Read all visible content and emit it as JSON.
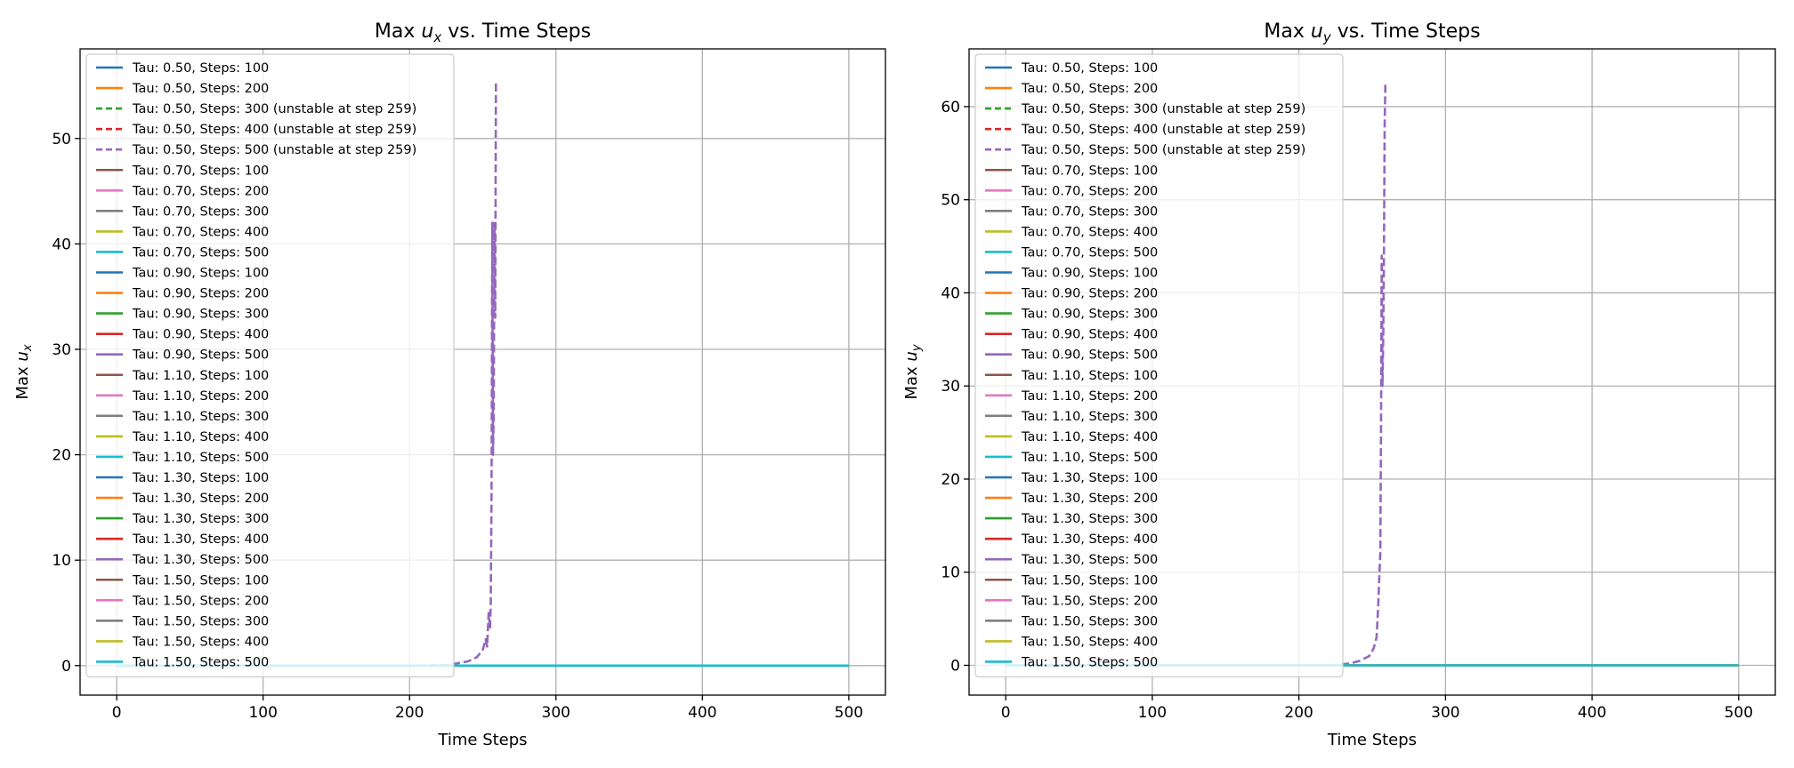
{
  "colors": {
    "blue": "#1f77b4",
    "orange": "#ff7f0e",
    "green": "#2ca02c",
    "red": "#d62728",
    "purple": "#9467bd",
    "brown": "#8c564b",
    "pink": "#e377c2",
    "gray": "#7f7f7f",
    "olive": "#bcbd22",
    "cyan": "#17becf",
    "grid": "#b0b0b0",
    "frame": "#000000"
  },
  "chart_data": [
    {
      "type": "line",
      "title_prefix": "Max ",
      "title_var": "u",
      "title_sub": "x",
      "title_suffix": " vs. Time Steps",
      "xlabel": "Time Steps",
      "ylabel_prefix": "Max ",
      "ylabel_var": "u",
      "ylabel_sub": "x",
      "xlim": [
        -25,
        525
      ],
      "ylim": [
        -2.8,
        58.5
      ],
      "xticks": [
        0,
        100,
        200,
        300,
        400,
        500
      ],
      "xtick_labels": [
        "0",
        "100",
        "200",
        "300",
        "400",
        "500"
      ],
      "yticks": [
        0,
        10,
        20,
        30,
        40,
        50
      ],
      "ytick_labels": [
        "0",
        "10",
        "20",
        "30",
        "40",
        "50"
      ],
      "grid": true,
      "legend_position": "upper-left",
      "series": [
        {
          "name": "Tau: 0.50, Steps: 100",
          "color": "blue",
          "dash": false
        },
        {
          "name": "Tau: 0.50, Steps: 200",
          "color": "orange",
          "dash": false
        },
        {
          "name": "Tau: 0.50, Steps: 300 (unstable at step 259)",
          "color": "green",
          "dash": true
        },
        {
          "name": "Tau: 0.50, Steps: 400 (unstable at step 259)",
          "color": "red",
          "dash": true
        },
        {
          "name": "Tau: 0.50, Steps: 500 (unstable at step 259)",
          "color": "purple",
          "dash": true
        },
        {
          "name": "Tau: 0.70, Steps: 100",
          "color": "brown",
          "dash": false
        },
        {
          "name": "Tau: 0.70, Steps: 200",
          "color": "pink",
          "dash": false
        },
        {
          "name": "Tau: 0.70, Steps: 300",
          "color": "gray",
          "dash": false
        },
        {
          "name": "Tau: 0.70, Steps: 400",
          "color": "olive",
          "dash": false
        },
        {
          "name": "Tau: 0.70, Steps: 500",
          "color": "cyan",
          "dash": false
        },
        {
          "name": "Tau: 0.90, Steps: 100",
          "color": "blue",
          "dash": false
        },
        {
          "name": "Tau: 0.90, Steps: 200",
          "color": "orange",
          "dash": false
        },
        {
          "name": "Tau: 0.90, Steps: 300",
          "color": "green",
          "dash": false
        },
        {
          "name": "Tau: 0.90, Steps: 400",
          "color": "red",
          "dash": false
        },
        {
          "name": "Tau: 0.90, Steps: 500",
          "color": "purple",
          "dash": false
        },
        {
          "name": "Tau: 1.10, Steps: 100",
          "color": "brown",
          "dash": false
        },
        {
          "name": "Tau: 1.10, Steps: 200",
          "color": "pink",
          "dash": false
        },
        {
          "name": "Tau: 1.10, Steps: 300",
          "color": "gray",
          "dash": false
        },
        {
          "name": "Tau: 1.10, Steps: 400",
          "color": "olive",
          "dash": false
        },
        {
          "name": "Tau: 1.10, Steps: 500",
          "color": "cyan",
          "dash": false
        },
        {
          "name": "Tau: 1.30, Steps: 100",
          "color": "blue",
          "dash": false
        },
        {
          "name": "Tau: 1.30, Steps: 200",
          "color": "orange",
          "dash": false
        },
        {
          "name": "Tau: 1.30, Steps: 300",
          "color": "green",
          "dash": false
        },
        {
          "name": "Tau: 1.30, Steps: 400",
          "color": "red",
          "dash": false
        },
        {
          "name": "Tau: 1.30, Steps: 500",
          "color": "purple",
          "dash": false
        },
        {
          "name": "Tau: 1.50, Steps: 100",
          "color": "brown",
          "dash": false
        },
        {
          "name": "Tau: 1.50, Steps: 200",
          "color": "pink",
          "dash": false
        },
        {
          "name": "Tau: 1.50, Steps: 300",
          "color": "gray",
          "dash": false
        },
        {
          "name": "Tau: 1.50, Steps: 400",
          "color": "olive",
          "dash": false
        },
        {
          "name": "Tau: 1.50, Steps: 500",
          "color": "cyan",
          "dash": false
        }
      ],
      "stable_traces": [
        {
          "color": "blue",
          "x": [
            0,
            500
          ],
          "y": [
            0,
            0
          ]
        },
        {
          "color": "orange",
          "x": [
            0,
            500
          ],
          "y": [
            0,
            0
          ]
        },
        {
          "color": "cyan",
          "x": [
            0,
            500
          ],
          "y": [
            0,
            0
          ]
        }
      ],
      "unstable_trace": {
        "color": "purple",
        "x": [
          0,
          100,
          200,
          225,
          232,
          240,
          246,
          250,
          252,
          253,
          254,
          255,
          255.5,
          256,
          256.5,
          257,
          257.5,
          258,
          258.5,
          259
        ],
        "y": [
          0,
          0,
          0,
          0.05,
          0.2,
          0.4,
          0.8,
          1.5,
          2.5,
          1.8,
          5.0,
          3.5,
          6.0,
          17.0,
          42.0,
          20.0,
          24.0,
          42.0,
          33.0,
          55.5
        ]
      }
    },
    {
      "type": "line",
      "title_prefix": "Max ",
      "title_var": "u",
      "title_sub": "y",
      "title_suffix": " vs. Time Steps",
      "xlabel": "Time Steps",
      "ylabel_prefix": "Max ",
      "ylabel_var": "u",
      "ylabel_sub": "y",
      "xlim": [
        -25,
        525
      ],
      "ylim": [
        -3.2,
        66.2
      ],
      "xticks": [
        0,
        100,
        200,
        300,
        400,
        500
      ],
      "xtick_labels": [
        "0",
        "100",
        "200",
        "300",
        "400",
        "500"
      ],
      "yticks": [
        0,
        10,
        20,
        30,
        40,
        50,
        60
      ],
      "ytick_labels": [
        "0",
        "10",
        "20",
        "30",
        "40",
        "50",
        "60"
      ],
      "grid": true,
      "legend_position": "upper-left",
      "series": [
        {
          "name": "Tau: 0.50, Steps: 100",
          "color": "blue",
          "dash": false
        },
        {
          "name": "Tau: 0.50, Steps: 200",
          "color": "orange",
          "dash": false
        },
        {
          "name": "Tau: 0.50, Steps: 300 (unstable at step 259)",
          "color": "green",
          "dash": true
        },
        {
          "name": "Tau: 0.50, Steps: 400 (unstable at step 259)",
          "color": "red",
          "dash": true
        },
        {
          "name": "Tau: 0.50, Steps: 500 (unstable at step 259)",
          "color": "purple",
          "dash": true
        },
        {
          "name": "Tau: 0.70, Steps: 100",
          "color": "brown",
          "dash": false
        },
        {
          "name": "Tau: 0.70, Steps: 200",
          "color": "pink",
          "dash": false
        },
        {
          "name": "Tau: 0.70, Steps: 300",
          "color": "gray",
          "dash": false
        },
        {
          "name": "Tau: 0.70, Steps: 400",
          "color": "olive",
          "dash": false
        },
        {
          "name": "Tau: 0.70, Steps: 500",
          "color": "cyan",
          "dash": false
        },
        {
          "name": "Tau: 0.90, Steps: 100",
          "color": "blue",
          "dash": false
        },
        {
          "name": "Tau: 0.90, Steps: 200",
          "color": "orange",
          "dash": false
        },
        {
          "name": "Tau: 0.90, Steps: 300",
          "color": "green",
          "dash": false
        },
        {
          "name": "Tau: 0.90, Steps: 400",
          "color": "red",
          "dash": false
        },
        {
          "name": "Tau: 0.90, Steps: 500",
          "color": "purple",
          "dash": false
        },
        {
          "name": "Tau: 1.10, Steps: 100",
          "color": "brown",
          "dash": false
        },
        {
          "name": "Tau: 1.10, Steps: 200",
          "color": "pink",
          "dash": false
        },
        {
          "name": "Tau: 1.10, Steps: 300",
          "color": "gray",
          "dash": false
        },
        {
          "name": "Tau: 1.10, Steps: 400",
          "color": "olive",
          "dash": false
        },
        {
          "name": "Tau: 1.10, Steps: 500",
          "color": "cyan",
          "dash": false
        },
        {
          "name": "Tau: 1.30, Steps: 100",
          "color": "blue",
          "dash": false
        },
        {
          "name": "Tau: 1.30, Steps: 200",
          "color": "orange",
          "dash": false
        },
        {
          "name": "Tau: 1.30, Steps: 300",
          "color": "green",
          "dash": false
        },
        {
          "name": "Tau: 1.30, Steps: 400",
          "color": "red",
          "dash": false
        },
        {
          "name": "Tau: 1.30, Steps: 500",
          "color": "purple",
          "dash": false
        },
        {
          "name": "Tau: 1.50, Steps: 100",
          "color": "brown",
          "dash": false
        },
        {
          "name": "Tau: 1.50, Steps: 200",
          "color": "pink",
          "dash": false
        },
        {
          "name": "Tau: 1.50, Steps: 300",
          "color": "gray",
          "dash": false
        },
        {
          "name": "Tau: 1.50, Steps: 400",
          "color": "olive",
          "dash": false
        },
        {
          "name": "Tau: 1.50, Steps: 500",
          "color": "cyan",
          "dash": false
        }
      ],
      "stable_traces": [
        {
          "color": "blue",
          "x": [
            0,
            500
          ],
          "y": [
            0,
            0
          ]
        },
        {
          "color": "orange",
          "x": [
            0,
            500
          ],
          "y": [
            0,
            0
          ]
        },
        {
          "color": "cyan",
          "x": [
            0,
            500
          ],
          "y": [
            0,
            0
          ]
        }
      ],
      "unstable_trace": {
        "color": "purple",
        "x": [
          0,
          100,
          200,
          225,
          235,
          242,
          248,
          251,
          253,
          254,
          255,
          255.5,
          256,
          256.5,
          257,
          257.5,
          258,
          258.5,
          259
        ],
        "y": [
          0,
          0,
          0,
          0.05,
          0.2,
          0.5,
          1.0,
          1.8,
          3.0,
          6.0,
          10.0,
          12.0,
          25.0,
          44.0,
          30.0,
          35.0,
          44.0,
          58.0,
          62.5
        ]
      }
    }
  ]
}
